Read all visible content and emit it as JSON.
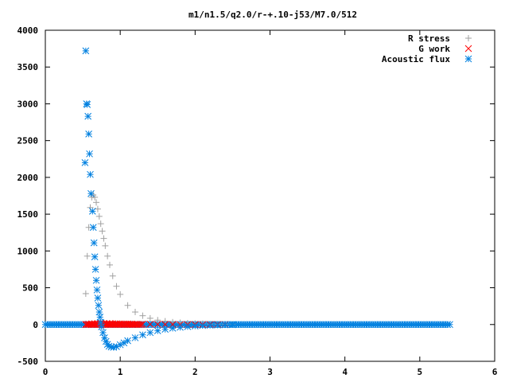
{
  "chart_data": {
    "type": "scatter",
    "title": "m1/n1.5/q2.0/r-+.10-j53/M7.0/512",
    "xlabel": "",
    "ylabel": "",
    "xlim": [
      0,
      6
    ],
    "ylim": [
      -500,
      4000
    ],
    "xticks": [
      "0",
      "1",
      "2",
      "3",
      "4",
      "5",
      "6"
    ],
    "yticks": [
      "-500",
      "0",
      "500",
      "1000",
      "1500",
      "2000",
      "2500",
      "3000",
      "3500",
      "4000"
    ],
    "grid": false,
    "legend_position": "top-right",
    "series": [
      {
        "name": "R stress",
        "marker": "plus",
        "color": "#a0a0a0",
        "x": [
          0.54,
          0.56,
          0.58,
          0.6,
          0.62,
          0.64,
          0.66,
          0.68,
          0.7,
          0.72,
          0.74,
          0.76,
          0.78,
          0.8,
          0.83,
          0.86,
          0.9,
          0.95,
          1.0,
          1.1,
          1.2,
          1.3,
          1.4,
          1.5,
          1.6,
          1.7,
          1.8,
          1.9,
          2.0,
          2.1,
          2.2,
          2.3,
          2.4,
          2.5
        ],
        "y": [
          420,
          930,
          1320,
          1590,
          1730,
          1760,
          1730,
          1660,
          1570,
          1470,
          1370,
          1270,
          1170,
          1070,
          930,
          810,
          660,
          520,
          410,
          260,
          170,
          120,
          85,
          60,
          45,
          32,
          24,
          18,
          14,
          10,
          7,
          5,
          3,
          2
        ]
      },
      {
        "name": "G work",
        "marker": "cross",
        "color": "#ff0000",
        "x": [
          0.54,
          0.58,
          0.62,
          0.66,
          0.7,
          0.74,
          0.78,
          0.82,
          0.86,
          0.9,
          0.95,
          1.0,
          1.05,
          1.1,
          1.15,
          1.2,
          1.3,
          1.4,
          1.5,
          1.6,
          1.7,
          1.8,
          1.9,
          2.0,
          2.1,
          2.2,
          2.3,
          2.4
        ],
        "y": [
          0,
          5,
          10,
          12,
          14,
          15,
          15,
          14,
          13,
          12,
          11,
          10,
          9,
          8,
          7,
          6,
          5,
          4,
          3,
          2,
          2,
          1,
          1,
          1,
          0,
          0,
          0,
          0
        ]
      },
      {
        "name": "Acoustic flux",
        "marker": "star",
        "color": "#0080e0",
        "x": [
          0.53,
          0.54,
          0.55,
          0.56,
          0.57,
          0.58,
          0.59,
          0.6,
          0.61,
          0.63,
          0.64,
          0.65,
          0.66,
          0.67,
          0.68,
          0.69,
          0.7,
          0.71,
          0.72,
          0.73,
          0.74,
          0.75,
          0.77,
          0.79,
          0.81,
          0.83,
          0.85,
          0.88,
          0.91,
          0.95,
          1.0,
          1.05,
          1.1,
          1.2,
          1.3,
          1.4,
          1.5,
          1.6,
          1.7,
          1.8,
          1.9,
          2.0,
          2.1,
          2.2,
          2.3,
          2.4,
          2.5
        ],
        "y": [
          2200,
          3720,
          3000,
          2990,
          2830,
          2590,
          2320,
          2040,
          1780,
          1540,
          1320,
          1110,
          920,
          750,
          600,
          470,
          360,
          260,
          170,
          100,
          30,
          -30,
          -110,
          -180,
          -230,
          -270,
          -295,
          -305,
          -310,
          -300,
          -275,
          -250,
          -220,
          -180,
          -140,
          -110,
          -85,
          -65,
          -50,
          -38,
          -28,
          -20,
          -14,
          -10,
          -7,
          -4,
          -2
        ]
      }
    ],
    "baseline_range": {
      "x_from": 0.0,
      "x_to": 5.42,
      "y": 0,
      "series_index_note": "dense points along y=0"
    }
  }
}
